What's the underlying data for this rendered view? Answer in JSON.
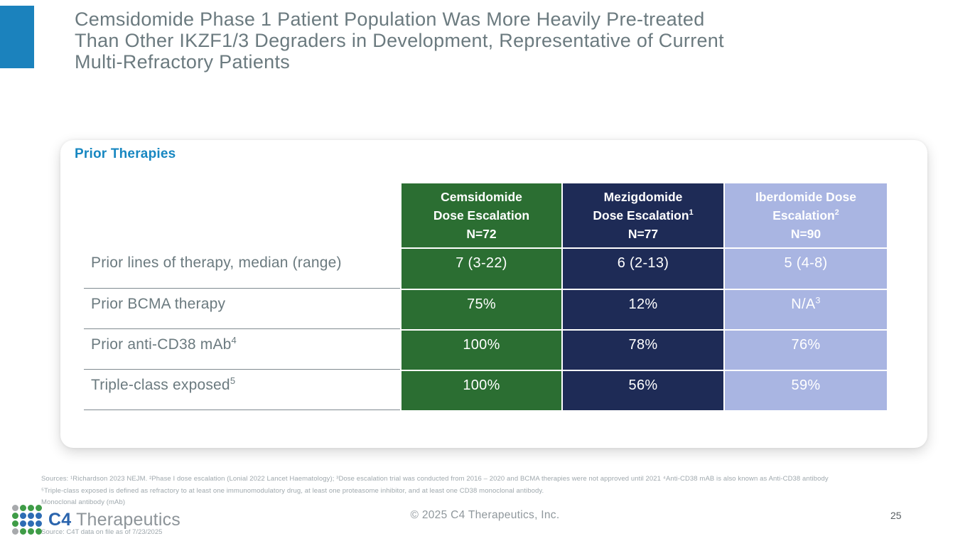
{
  "slide": {
    "title_line1": "Cemsidomide Phase 1 Patient Population Was More Heavily Pre-treated",
    "title_line2": "Than Other IKZF1/3 Degraders in Development, Representative of Current",
    "title_line3": "Multi-Refractory Patients",
    "copyright": "© 2025 C4 Therapeutics, Inc.",
    "page_number": "25"
  },
  "card": {
    "heading": "Prior Therapies"
  },
  "table": {
    "columns": [
      {
        "line1": "Cemsidomide",
        "line2": "Dose Escalation",
        "line2_sup": "",
        "line3": "N=72",
        "color": "#2b6e32"
      },
      {
        "line1": "Mezigdomide",
        "line2": "Dose Escalation",
        "line2_sup": "1",
        "line3": "N=77",
        "color": "#1e2b56"
      },
      {
        "line1": "Iberdomide Dose",
        "line2": "Escalation",
        "line2_sup": "2",
        "line3": "N=90",
        "color": "#a9b5e2"
      }
    ],
    "rows": [
      {
        "label": "Prior lines of therapy, median (range)",
        "label_sup": "",
        "values": [
          "7 (3-22)",
          "6 (2-13)",
          "5 (4-8)"
        ],
        "value_sups": [
          "",
          "",
          ""
        ]
      },
      {
        "label": "Prior BCMA therapy",
        "label_sup": "",
        "values": [
          "75%",
          "12%",
          "N/A"
        ],
        "value_sups": [
          "",
          "",
          "3"
        ]
      },
      {
        "label": "Prior anti-CD38 mAb",
        "label_sup": "4",
        "values": [
          "100%",
          "78%",
          "76%"
        ],
        "value_sups": [
          "",
          "",
          ""
        ]
      },
      {
        "label": "Triple-class exposed",
        "label_sup": "5",
        "values": [
          "100%",
          "56%",
          "59%"
        ],
        "value_sups": [
          "",
          "",
          ""
        ]
      }
    ]
  },
  "footnotes": {
    "line1": "Sources: ¹Richardson 2023 NEJM.  ²Phase I dose escalation (Lonial 2022 Lancet Haematology); ³Dose escalation trial was conducted from 2016 – 2020 and BCMA therapies were not approved until 2021 ⁴Anti-CD38 mAB is also known as Anti-CD38 antibody",
    "line2": "⁵Triple-class exposed is defined as refractory to at least one immunomodulatory drug, at least one proteasome inhibitor, and at least one CD38 monoclonal antibody.",
    "line3": "Monoclonal antibody (mAb)",
    "source": "Source: C4T data on file as of 7/23/2025"
  },
  "logo": {
    "c4": "C4",
    "therapeutics": "Therapeutics",
    "c4_color": "#2a64ad",
    "therapeutics_color": "#8d9499",
    "dot_colors": [
      [
        "#a7a9ac",
        "#3f9c47",
        "#3f9c47",
        "#3f9c47"
      ],
      [
        "#3f9c47",
        "#2d6cb4",
        "#2d6cb4",
        "#2d6cb4"
      ],
      [
        "#3f9c47",
        "#2d6cb4",
        "#2d6cb4",
        "#2d6cb4"
      ],
      [
        "#a7a9ac",
        "#3f9c47",
        "#3f9c47",
        "#3f9c47"
      ]
    ]
  },
  "colors": {
    "accent_blue": "#1b82bd",
    "heading_blue": "#1787c1",
    "title_gray": "#6b7a7f"
  }
}
